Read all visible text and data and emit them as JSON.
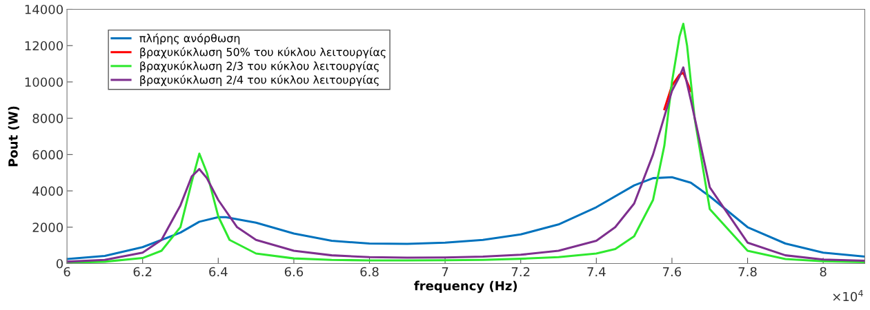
{
  "chart_data": {
    "type": "line",
    "xlabel": "frequency (Hz)",
    "ylabel": "Pout (W)",
    "legend": "top left",
    "grid": false,
    "xlim": [
      6,
      8.11
    ],
    "ylim": [
      0,
      14000
    ],
    "xticks": [
      6,
      6.2,
      6.4,
      6.6,
      6.8,
      7,
      7.2,
      7.4,
      7.6,
      7.8,
      8
    ],
    "yticks": [
      0,
      2000,
      4000,
      6000,
      8000,
      10000,
      12000,
      14000
    ],
    "annotations": [
      "×10$^{4}$"
    ],
    "series": [
      {
        "name": "πλήρης ανόρθωση",
        "color": "#0072bd",
        "x": [
          6,
          6.1,
          6.2,
          6.3,
          6.35,
          6.4,
          6.42,
          6.5,
          6.6,
          6.7,
          6.8,
          6.9,
          7,
          7.1,
          7.2,
          7.3,
          7.4,
          7.5,
          7.55,
          7.6,
          7.65,
          7.7,
          7.8,
          7.9,
          8,
          8.11
        ],
        "values": [
          250,
          420,
          900,
          1700,
          2300,
          2550,
          2550,
          2250,
          1650,
          1250,
          1100,
          1080,
          1150,
          1300,
          1600,
          2150,
          3100,
          4300,
          4700,
          4750,
          4450,
          3700,
          2000,
          1100,
          600,
          380
        ]
      },
      {
        "name": "βραχυκύκλωση 50% του κύκλου λειτουργίας",
        "color": "#ff0000",
        "x": [
          7.58,
          7.6,
          7.62,
          7.63,
          7.65
        ],
        "values": [
          8500,
          9800,
          10400,
          10500,
          9500
        ]
      },
      {
        "name": "βραχυκύκλωση 2/3 του κύκλου λειτουργίας",
        "color": "#2ee82e",
        "x": [
          6,
          6.1,
          6.2,
          6.25,
          6.3,
          6.33,
          6.35,
          6.37,
          6.4,
          6.43,
          6.5,
          6.6,
          6.7,
          6.8,
          6.9,
          7,
          7.1,
          7.2,
          7.3,
          7.4,
          7.45,
          7.5,
          7.55,
          7.58,
          7.6,
          7.62,
          7.63,
          7.64,
          7.66,
          7.7,
          7.8,
          7.9,
          8,
          8.11
        ],
        "values": [
          50,
          100,
          300,
          700,
          2000,
          4500,
          6050,
          5000,
          2600,
          1300,
          550,
          280,
          200,
          170,
          170,
          180,
          200,
          260,
          350,
          550,
          800,
          1500,
          3500,
          6500,
          10000,
          12500,
          13200,
          12000,
          8000,
          3000,
          700,
          250,
          120,
          80
        ]
      },
      {
        "name": "βραχυκύκλωση 2/4 του κύκλου λειτουργίας",
        "color": "#7e2f8e",
        "x": [
          6,
          6.1,
          6.2,
          6.25,
          6.3,
          6.33,
          6.35,
          6.37,
          6.4,
          6.45,
          6.5,
          6.6,
          6.7,
          6.8,
          6.9,
          7,
          7.1,
          7.2,
          7.3,
          7.4,
          7.45,
          7.5,
          7.55,
          7.6,
          7.62,
          7.63,
          7.65,
          7.7,
          7.8,
          7.9,
          8,
          8.11
        ],
        "values": [
          100,
          200,
          600,
          1300,
          3200,
          4800,
          5200,
          4700,
          3500,
          2000,
          1300,
          700,
          450,
          350,
          320,
          330,
          380,
          480,
          700,
          1250,
          2000,
          3300,
          6000,
          9500,
          10300,
          10800,
          9000,
          4200,
          1150,
          450,
          220,
          150
        ]
      }
    ]
  }
}
